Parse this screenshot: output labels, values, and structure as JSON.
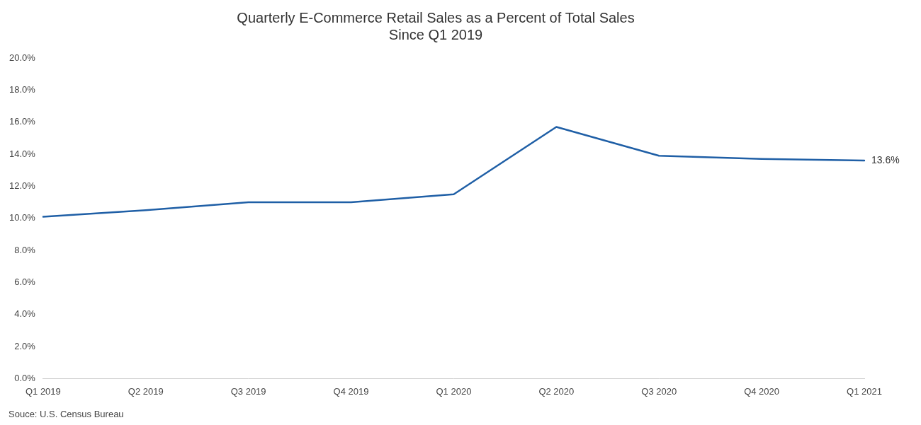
{
  "chart_data": {
    "type": "line",
    "title": "Quarterly E-Commerce Retail Sales as a Percent of Total Sales",
    "subtitle": "Since Q1 2019",
    "categories": [
      "Q1 2019",
      "Q2 2019",
      "Q3 2019",
      "Q4 2019",
      "Q1 2020",
      "Q2 2020",
      "Q3 2020",
      "Q4 2020",
      "Q1 2021"
    ],
    "values": [
      0.101,
      0.105,
      0.11,
      0.11,
      0.115,
      0.157,
      0.139,
      0.137,
      0.136
    ],
    "color": "#1f5fa6",
    "ylim": [
      0,
      0.2
    ],
    "yticks": [
      {
        "value": 0,
        "label": "0.0%"
      },
      {
        "value": 0.02,
        "label": "2.0%"
      },
      {
        "value": 0.04,
        "label": "4.0%"
      },
      {
        "value": 0.06,
        "label": "6.0%"
      },
      {
        "value": 0.08,
        "label": "8.0%"
      },
      {
        "value": 0.1,
        "label": "10.0%"
      },
      {
        "value": 0.12,
        "label": "12.0%"
      },
      {
        "value": 0.14,
        "label": "14.0%"
      },
      {
        "value": 0.16,
        "label": "16.0%"
      },
      {
        "value": 0.18,
        "label": "18.0%"
      },
      {
        "value": 0.2,
        "label": "20.0%"
      }
    ],
    "grid": false,
    "annotations": [
      {
        "text": "13.6%",
        "x": "Q1 2021",
        "y": 0.136
      }
    ],
    "source": "Souce: U.S. Census Bureau"
  }
}
